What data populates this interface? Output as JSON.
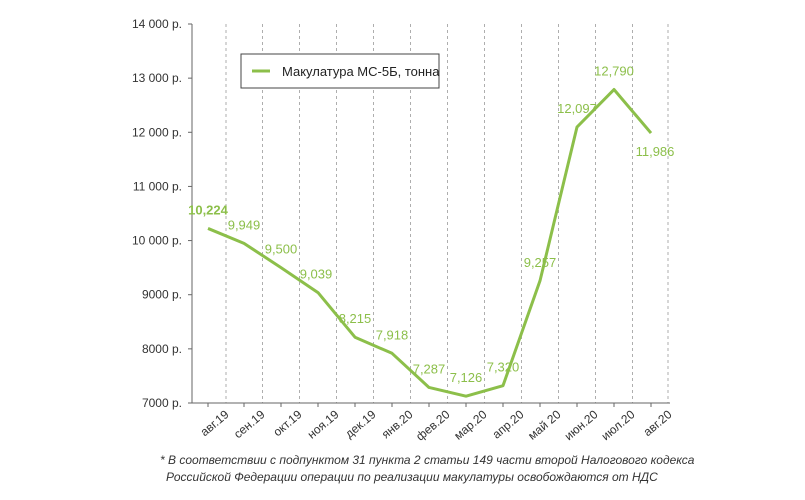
{
  "chart_data": {
    "type": "line",
    "categories": [
      "авг.19",
      "сен.19",
      "окт.19",
      "ноя.19",
      "дек.19",
      "янв.20",
      "фев.20",
      "мар.20",
      "апр.20",
      "май 20",
      "июн.20",
      "июл.20",
      "авг.20"
    ],
    "series": [
      {
        "name": "Макулатура МС-5Б, тонна",
        "values": [
          10224,
          9949,
          9500,
          9039,
          8215,
          7918,
          7287,
          7126,
          7320,
          9257,
          12097,
          12790,
          11986
        ],
        "labels": [
          "10,224",
          "9,949",
          "9,500",
          "9,039",
          "8,215",
          "7,918",
          "7,287",
          "7,126",
          "7,320",
          "9,257",
          "12,097",
          "12,790",
          "11,986"
        ]
      }
    ],
    "ylim": [
      7000,
      14000
    ],
    "yticks": [
      7000,
      8000,
      9000,
      10000,
      11000,
      12000,
      13000,
      14000
    ],
    "ytick_labels": [
      "7000 р.",
      "8000 р.",
      "9000 р.",
      "10 000 р.",
      "11 000 р.",
      "12 000 р.",
      "13 000 р.",
      "14 000 р."
    ],
    "color": "#8cbf4a",
    "legend": "top-left",
    "grid": "vertical-dashed"
  },
  "footnote": {
    "line1": "* В соответствии с подпунктом 31 пункта 2 статьи 149 части второй Налогового кодекса",
    "line2": "Российской Федерации операции по реализации макулатуры освобождаются от НДС"
  }
}
